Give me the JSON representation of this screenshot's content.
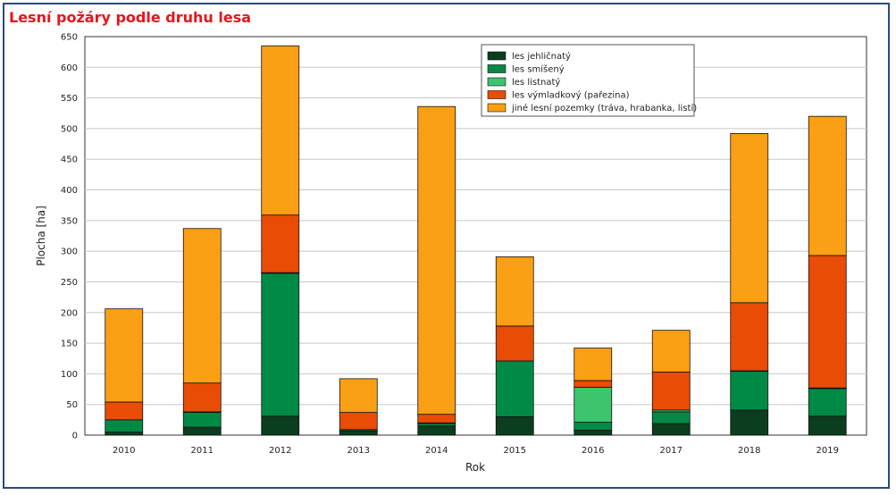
{
  "chart_data": {
    "type": "bar",
    "stacked": true,
    "title": "Lesní požáry podle druhu lesa",
    "xlabel": "Rok",
    "ylabel": "Plocha [ha]",
    "ylim": [
      0,
      650
    ],
    "yticks": [
      0,
      50,
      100,
      150,
      200,
      250,
      300,
      350,
      400,
      450,
      500,
      550,
      600,
      650
    ],
    "grid": true,
    "legend_position": "top-right",
    "categories": [
      "2010",
      "2011",
      "2012",
      "2013",
      "2014",
      "2015",
      "2016",
      "2017",
      "2018",
      "2019"
    ],
    "series": [
      {
        "name": "les jehličnatý",
        "color": "#0b3d1f",
        "values": [
          5,
          13,
          31,
          7,
          15,
          30,
          8,
          19,
          41,
          31
        ]
      },
      {
        "name": "les smíšený",
        "color": "#008a45",
        "values": [
          20,
          24,
          233,
          2,
          4,
          91,
          13,
          19,
          63,
          45
        ]
      },
      {
        "name": "les listnatý",
        "color": "#3cc46e",
        "values": [
          0,
          1,
          1,
          0,
          1,
          0,
          57,
          3,
          1,
          1
        ]
      },
      {
        "name": "les výmladkový (pařezina)",
        "color": "#e84c05",
        "values": [
          29,
          47,
          94,
          28,
          14,
          57,
          11,
          62,
          111,
          216
        ]
      },
      {
        "name": "jiné lesní pozemky (tráva, hrabanka, listí)",
        "color": "#fb9f14",
        "values": [
          152,
          252,
          276,
          55,
          502,
          113,
          53,
          68,
          276,
          227
        ]
      }
    ]
  }
}
